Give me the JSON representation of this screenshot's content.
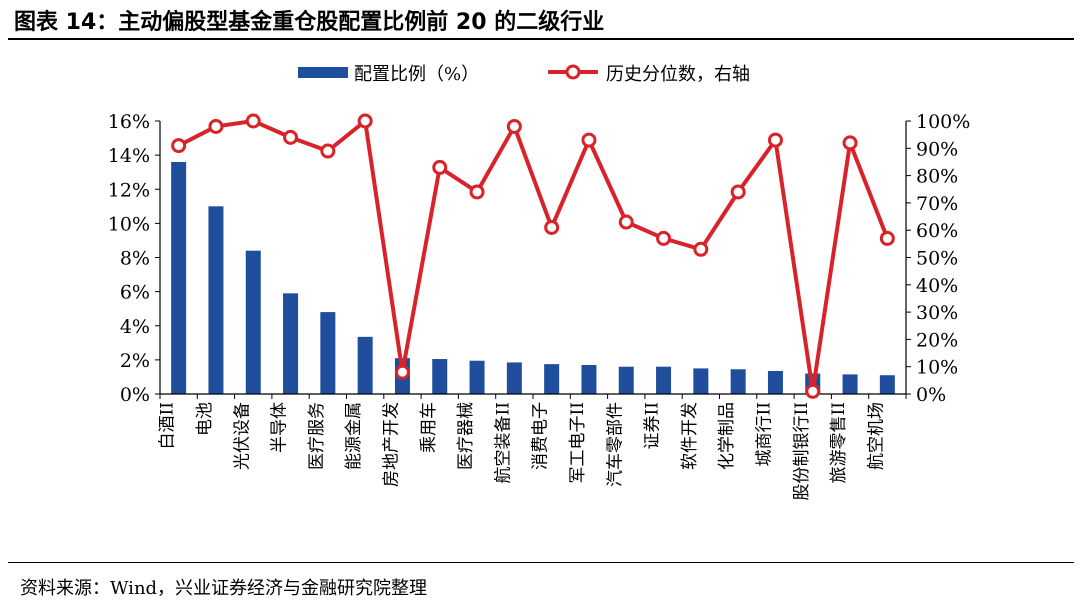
{
  "header": {
    "title": "图表 14：主动偏股型基金重仓股配置比例前 20 的二级行业"
  },
  "footer": {
    "source": "资料来源：Wind，兴业证券经济与金融研究院整理"
  },
  "colors": {
    "bar": "#1f4e9c",
    "line": "#d9232a",
    "marker_fill": "#ffffff"
  },
  "chart_data": {
    "type": "bar+line",
    "title": "主动偏股型基金重仓股配置比例前 20 的二级行业",
    "categories": [
      "白酒II",
      "电池",
      "光伏设备",
      "半导体",
      "医疗服务",
      "能源金属",
      "房地产开发",
      "乘用车",
      "医疗器械",
      "航空装备II",
      "消费电子",
      "军工电子II",
      "汽车零部件",
      "证券II",
      "软件开发",
      "化学制品",
      "城商行II",
      "股份制银行II",
      "旅游零售II",
      "航空机场"
    ],
    "series": [
      {
        "name": "配置比例（%）",
        "type": "bar",
        "axis": "left",
        "values": [
          13.6,
          11.0,
          8.4,
          5.9,
          4.8,
          3.35,
          2.1,
          2.05,
          1.95,
          1.85,
          1.75,
          1.7,
          1.6,
          1.6,
          1.5,
          1.45,
          1.35,
          1.2,
          1.15,
          1.1
        ]
      },
      {
        "name": "历史分位数，右轴",
        "type": "line",
        "axis": "right",
        "values": [
          91,
          98,
          100,
          94,
          89,
          100,
          8,
          83,
          74,
          98,
          61,
          93,
          63,
          57,
          53,
          74,
          93,
          1,
          92,
          57
        ]
      }
    ],
    "left_axis": {
      "min": 0,
      "max": 16,
      "step": 2,
      "tick_labels": [
        "0%",
        "2%",
        "4%",
        "6%",
        "8%",
        "10%",
        "12%",
        "14%",
        "16%"
      ]
    },
    "right_axis": {
      "min": 0,
      "max": 100,
      "step": 10,
      "tick_labels": [
        "0%",
        "10%",
        "20%",
        "30%",
        "40%",
        "50%",
        "60%",
        "70%",
        "80%",
        "90%",
        "100%"
      ]
    },
    "legend_position": "top-center",
    "grid": false
  }
}
